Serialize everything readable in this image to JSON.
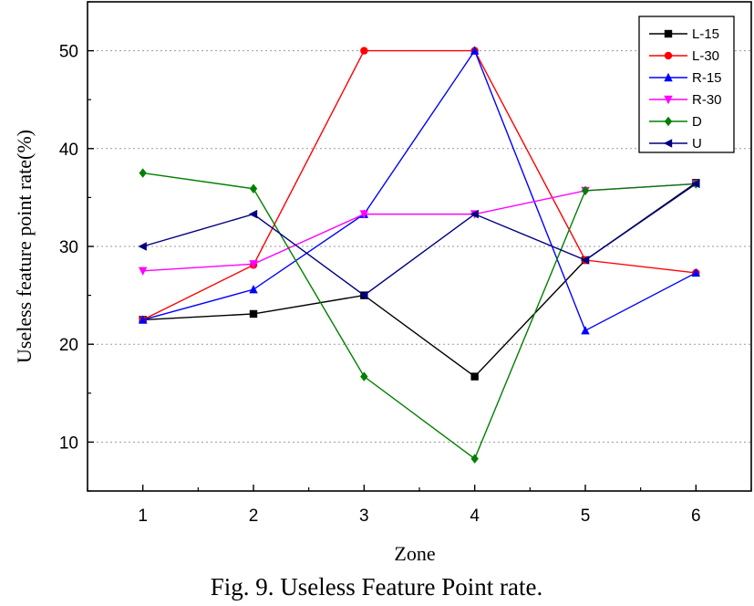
{
  "chart_data": {
    "type": "line",
    "xlabel": "Zone",
    "ylabel": "Useless feature point rate(%)",
    "caption": "Fig. 9. Useless Feature Point rate.",
    "x": [
      1,
      2,
      3,
      4,
      5,
      6
    ],
    "xticks": [
      "1",
      "2",
      "3",
      "4",
      "5",
      "6"
    ],
    "yticks": [
      "10",
      "20",
      "30",
      "40",
      "50"
    ],
    "xlim": [
      0.5,
      6.5
    ],
    "ylim": [
      5,
      55
    ],
    "grid": "horizontal dotted",
    "legend_position": "top-right",
    "series": [
      {
        "name": "L-15",
        "color": "#000000",
        "marker": "square",
        "values": [
          22.5,
          23.1,
          25.0,
          16.7,
          28.6,
          36.5
        ]
      },
      {
        "name": "L-30",
        "color": "#ff0000",
        "marker": "circle",
        "values": [
          22.5,
          28.1,
          50.0,
          50.0,
          28.6,
          27.3
        ]
      },
      {
        "name": "R-15",
        "color": "#0000ff",
        "marker": "triangle-up",
        "values": [
          22.5,
          25.6,
          33.3,
          50.0,
          21.4,
          27.3
        ]
      },
      {
        "name": "R-30",
        "color": "#ff00ff",
        "marker": "triangle-down",
        "values": [
          27.5,
          28.2,
          33.3,
          33.3,
          35.7,
          36.4
        ]
      },
      {
        "name": "D",
        "color": "#008000",
        "marker": "diamond",
        "values": [
          37.5,
          35.9,
          16.7,
          8.3,
          35.7,
          36.4
        ]
      },
      {
        "name": "U",
        "color": "#000080",
        "marker": "triangle-left",
        "values": [
          30.0,
          33.3,
          25.0,
          33.3,
          28.6,
          36.4
        ]
      }
    ]
  }
}
